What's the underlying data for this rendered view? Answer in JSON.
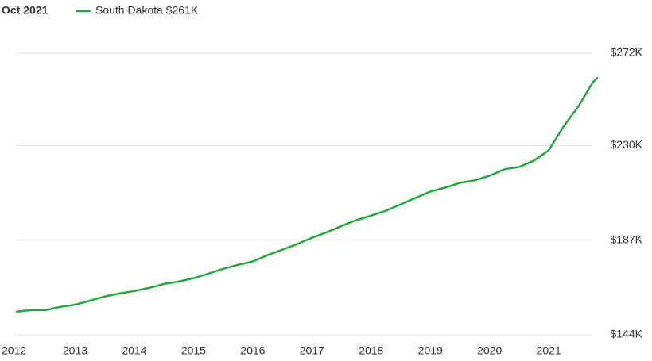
{
  "chart_data": {
    "type": "line",
    "date_label": "Oct 2021",
    "x": [
      2012,
      2012.25,
      2012.5,
      2012.75,
      2013,
      2013.25,
      2013.5,
      2013.75,
      2014,
      2014.25,
      2014.5,
      2014.75,
      2015,
      2015.25,
      2015.5,
      2015.75,
      2016,
      2016.25,
      2016.5,
      2016.75,
      2017,
      2017.25,
      2017.5,
      2017.75,
      2018,
      2018.25,
      2018.5,
      2018.75,
      2019,
      2019.25,
      2019.5,
      2019.75,
      2020,
      2020.25,
      2020.5,
      2020.75,
      2021,
      2021.25,
      2021.5,
      2021.75,
      2021.83
    ],
    "series": [
      {
        "name": "South Dakota $261K",
        "color": "#22a83a",
        "values": [
          154500,
          155200,
          155200,
          156700,
          157700,
          159500,
          161400,
          162800,
          163900,
          165300,
          167100,
          168200,
          169700,
          171800,
          174000,
          175800,
          177300,
          180200,
          182700,
          185200,
          188100,
          190600,
          193500,
          196100,
          198200,
          200400,
          203300,
          206200,
          209100,
          210900,
          213100,
          214200,
          216300,
          219200,
          220300,
          223200,
          227900,
          238700,
          247800,
          259000,
          261000
        ]
      }
    ],
    "xlim": [
      2012,
      2021.83
    ],
    "xticks": [
      2012,
      2013,
      2014,
      2015,
      2016,
      2017,
      2018,
      2019,
      2020,
      2021
    ],
    "ylim": [
      144000,
      272000
    ],
    "yticks": [
      {
        "value": 144000,
        "label": "$144K"
      },
      {
        "value": 187000,
        "label": "$187K"
      },
      {
        "value": 230000,
        "label": "$230K"
      },
      {
        "value": 272000,
        "label": "$272K"
      }
    ],
    "grid": true
  }
}
